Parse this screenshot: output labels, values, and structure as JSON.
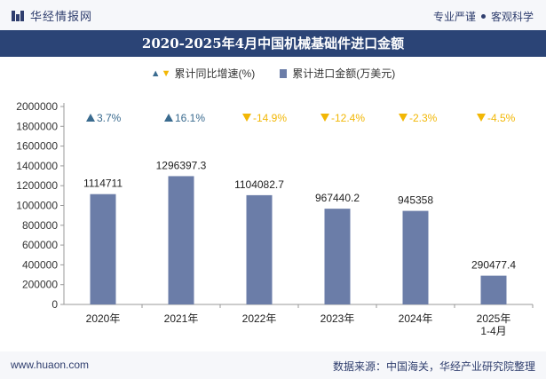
{
  "header": {
    "brand": "华经情报网",
    "tagline_left": "专业严谨",
    "tagline_right": "客观科学"
  },
  "title": "2020-2025年4月中国机械基础件进口金额",
  "legend": {
    "growth": "累计同比增速(%)",
    "amount": "累计进口金额(万美元)"
  },
  "colors": {
    "bar": "#6b7da8",
    "growth_up": "#3a6b8f",
    "growth_down": "#f2b705",
    "title_bg": "#2b4476",
    "text_dark": "#2f3e6e"
  },
  "chart_data": {
    "type": "bar",
    "categories": [
      "2020年",
      "2021年",
      "2022年",
      "2023年",
      "2024年",
      "2025年\n1-4月"
    ],
    "series": [
      {
        "name": "累计进口金额(万美元)",
        "values": [
          1114711,
          1296397.3,
          1104082.7,
          967440.2,
          945358,
          290477.4
        ],
        "value_labels": [
          "1114711",
          "1296397.3",
          "1104082.7",
          "967440.2",
          "945358",
          "290477.4"
        ]
      },
      {
        "name": "累计同比增速(%)",
        "values": [
          3.7,
          16.1,
          -14.9,
          -12.4,
          -2.3,
          -4.5
        ],
        "value_labels": [
          "3.7%",
          "16.1%",
          "-14.9%",
          "-12.4%",
          "-2.3%",
          "-4.5%"
        ]
      }
    ],
    "ylim": [
      0,
      2000000
    ],
    "yticks": [
      0,
      200000,
      400000,
      600000,
      800000,
      1000000,
      1200000,
      1400000,
      1600000,
      1800000,
      2000000
    ],
    "grid": false,
    "legend_position": "top-center"
  },
  "footer": {
    "url": "www.huaon.com",
    "source": "数据来源：中国海关，华经产业研究院整理"
  }
}
